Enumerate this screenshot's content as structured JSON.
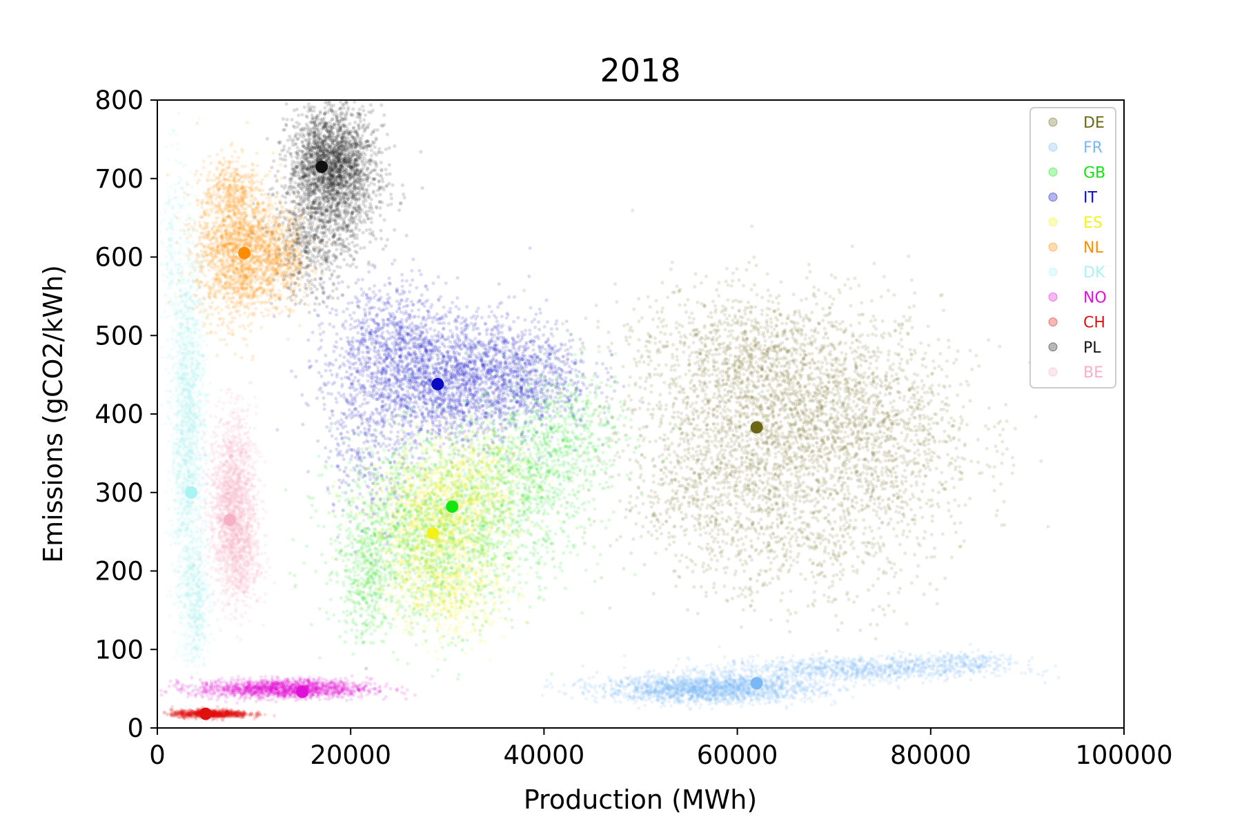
{
  "chart_data": {
    "type": "scatter",
    "title": "2018",
    "xlabel": "Production (MWh)",
    "ylabel": "Emissions (gCO2/kWh)",
    "xlim": [
      0,
      100000
    ],
    "ylim": [
      0,
      800
    ],
    "x_ticks": [
      "0",
      "20000",
      "40000",
      "60000",
      "80000",
      "100000"
    ],
    "y_ticks": [
      "0",
      "100",
      "200",
      "300",
      "400",
      "500",
      "600",
      "700",
      "800"
    ],
    "grid": false,
    "legend_position": "top-right",
    "series": [
      {
        "name": "DE",
        "color": "#6b6616",
        "mean": [
          62000,
          383
        ],
        "clouds": [
          {
            "cx": 65000,
            "cy": 410,
            "sx": 8000,
            "sy": 70,
            "n": 2200
          },
          {
            "cx": 73000,
            "cy": 360,
            "sx": 6000,
            "sy": 60,
            "n": 900
          },
          {
            "cx": 58000,
            "cy": 300,
            "sx": 5000,
            "sy": 55,
            "n": 700
          },
          {
            "cx": 68000,
            "cy": 230,
            "sx": 6000,
            "sy": 45,
            "n": 400
          },
          {
            "cx": 60000,
            "cy": 480,
            "sx": 6000,
            "sy": 40,
            "n": 500
          }
        ]
      },
      {
        "name": "FR",
        "color": "#7ab8f5",
        "mean": [
          62000,
          57
        ],
        "clouds": [
          {
            "cx": 57000,
            "cy": 50,
            "sx": 5500,
            "sy": 9,
            "n": 1800
          },
          {
            "cx": 72000,
            "cy": 75,
            "sx": 7000,
            "sy": 8,
            "n": 900
          },
          {
            "cx": 83000,
            "cy": 85,
            "sx": 3000,
            "sy": 6,
            "n": 200
          }
        ]
      },
      {
        "name": "GB",
        "color": "#11e611",
        "mean": [
          30500,
          282
        ],
        "clouds": [
          {
            "cx": 28000,
            "cy": 250,
            "sx": 5000,
            "sy": 60,
            "n": 1600
          },
          {
            "cx": 38000,
            "cy": 320,
            "sx": 4000,
            "sy": 55,
            "n": 900
          },
          {
            "cx": 43000,
            "cy": 380,
            "sx": 3000,
            "sy": 40,
            "n": 350
          },
          {
            "cx": 21500,
            "cy": 190,
            "sx": 1500,
            "sy": 40,
            "n": 300
          }
        ]
      },
      {
        "name": "IT",
        "color": "#0a0ac4",
        "mean": [
          29000,
          438
        ],
        "clouds": [
          {
            "cx": 29000,
            "cy": 440,
            "sx": 5000,
            "sy": 40,
            "n": 1800
          },
          {
            "cx": 37000,
            "cy": 450,
            "sx": 4000,
            "sy": 35,
            "n": 900
          },
          {
            "cx": 24000,
            "cy": 500,
            "sx": 3000,
            "sy": 35,
            "n": 600
          },
          {
            "cx": 22000,
            "cy": 360,
            "sx": 2500,
            "sy": 50,
            "n": 300
          }
        ]
      },
      {
        "name": "ES",
        "color": "#f2f21a",
        "mean": [
          28500,
          248
        ],
        "clouds": [
          {
            "cx": 29000,
            "cy": 260,
            "sx": 3500,
            "sy": 45,
            "n": 1500
          },
          {
            "cx": 30000,
            "cy": 170,
            "sx": 3000,
            "sy": 30,
            "n": 500
          },
          {
            "cx": 33000,
            "cy": 320,
            "sx": 3000,
            "sy": 30,
            "n": 400
          }
        ]
      },
      {
        "name": "NL",
        "color": "#ff8c00",
        "mean": [
          9000,
          605
        ],
        "clouds": [
          {
            "cx": 8500,
            "cy": 610,
            "sx": 2200,
            "sy": 45,
            "n": 1800
          },
          {
            "cx": 13000,
            "cy": 600,
            "sx": 1500,
            "sy": 30,
            "n": 400
          },
          {
            "cx": 7500,
            "cy": 690,
            "sx": 1200,
            "sy": 20,
            "n": 200
          }
        ]
      },
      {
        "name": "DK",
        "color": "#a8f3f3",
        "mean": [
          3500,
          300
        ],
        "clouds": [
          {
            "cx": 3200,
            "cy": 380,
            "sx": 900,
            "sy": 120,
            "n": 1800
          },
          {
            "cx": 4000,
            "cy": 160,
            "sx": 700,
            "sy": 40,
            "n": 400
          },
          {
            "cx": 1500,
            "cy": 620,
            "sx": 500,
            "sy": 60,
            "n": 150
          }
        ]
      },
      {
        "name": "NO",
        "color": "#e010d8",
        "mean": [
          15000,
          46
        ],
        "clouds": [
          {
            "cx": 13000,
            "cy": 50,
            "sx": 4500,
            "sy": 6,
            "n": 1500
          }
        ]
      },
      {
        "name": "CH",
        "color": "#e01010",
        "mean": [
          5000,
          18
        ],
        "clouds": [
          {
            "cx": 5500,
            "cy": 18,
            "sx": 2000,
            "sy": 2.5,
            "n": 800
          }
        ]
      },
      {
        "name": "PL",
        "color": "#111111",
        "mean": [
          17000,
          715
        ],
        "clouds": [
          {
            "cx": 18000,
            "cy": 720,
            "sx": 2200,
            "sy": 35,
            "n": 1800
          },
          {
            "cx": 16000,
            "cy": 620,
            "sx": 2000,
            "sy": 40,
            "n": 500
          },
          {
            "cx": 19000,
            "cy": 680,
            "sx": 2500,
            "sy": 45,
            "n": 500
          }
        ]
      },
      {
        "name": "BE",
        "color": "#f5b0c8",
        "mean": [
          7500,
          265
        ],
        "clouds": [
          {
            "cx": 7800,
            "cy": 290,
            "sx": 1200,
            "sy": 55,
            "n": 1600
          },
          {
            "cx": 8500,
            "cy": 220,
            "sx": 1100,
            "sy": 35,
            "n": 500
          }
        ]
      }
    ]
  }
}
